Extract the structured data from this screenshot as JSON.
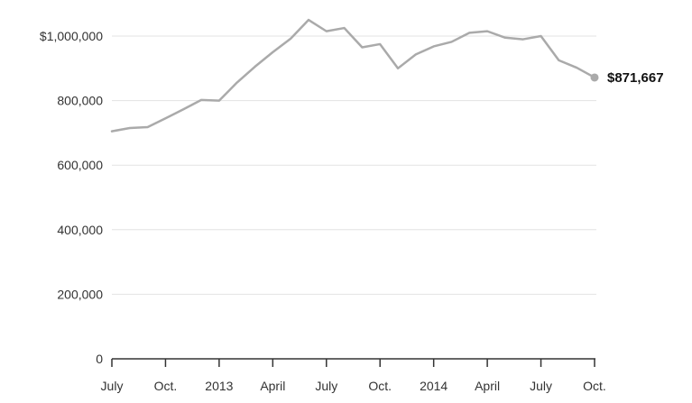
{
  "chart_data": {
    "type": "line",
    "title": "",
    "xlabel": "",
    "ylabel": "",
    "ylim": [
      0,
      1000000
    ],
    "grid": true,
    "y_ticks": [
      {
        "value": 0,
        "label": "0"
      },
      {
        "value": 200000,
        "label": "200,000"
      },
      {
        "value": 400000,
        "label": "400,000"
      },
      {
        "value": 600000,
        "label": "600,000"
      },
      {
        "value": 800000,
        "label": "800,000"
      },
      {
        "value": 1000000,
        "label": "$1,000,000"
      }
    ],
    "x_ticks": [
      {
        "date": "2012-07",
        "label": "July"
      },
      {
        "date": "2012-10",
        "label": "Oct."
      },
      {
        "date": "2013-01",
        "label": "2013"
      },
      {
        "date": "2013-04",
        "label": "April"
      },
      {
        "date": "2013-07",
        "label": "July"
      },
      {
        "date": "2013-10",
        "label": "Oct."
      },
      {
        "date": "2014-01",
        "label": "2014"
      },
      {
        "date": "2014-04",
        "label": "April"
      },
      {
        "date": "2014-07",
        "label": "July"
      },
      {
        "date": "2014-10",
        "label": "Oct."
      }
    ],
    "line_color": "#aaaaaa",
    "series": [
      {
        "x": [
          "2012-07",
          "2012-08",
          "2012-09",
          "2012-10",
          "2012-11",
          "2012-12",
          "2013-01",
          "2013-02",
          "2013-03",
          "2013-04",
          "2013-05",
          "2013-06",
          "2013-07",
          "2013-08",
          "2013-09",
          "2013-10",
          "2013-11",
          "2013-12",
          "2014-01",
          "2014-02",
          "2014-03",
          "2014-04",
          "2014-05",
          "2014-06",
          "2014-07",
          "2014-08",
          "2014-09",
          "2014-10"
        ],
        "values": [
          705000,
          715000,
          718000,
          745000,
          773000,
          802000,
          800000,
          856000,
          905000,
          950000,
          992000,
          1050000,
          1015000,
          1025000,
          965000,
          975000,
          900000,
          943000,
          968000,
          982000,
          1010000,
          1015000,
          995000,
          990000,
          1000000,
          925000,
          902000,
          871667
        ]
      }
    ],
    "end_label": "$871,667"
  }
}
